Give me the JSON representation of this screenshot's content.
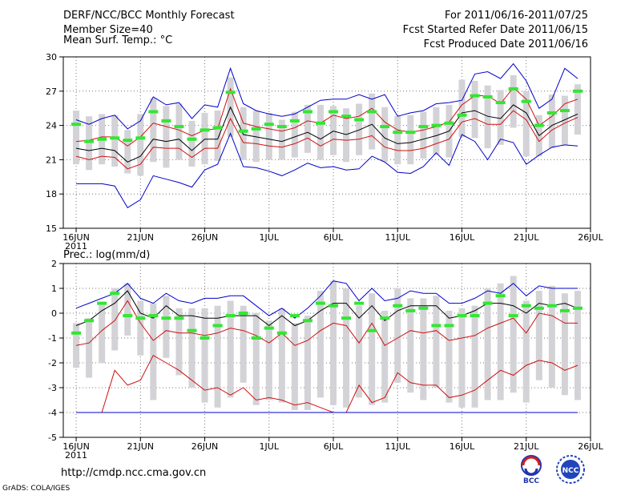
{
  "header": {
    "title": "DERF/NCC/BCC Monthly Forecast",
    "member_size": "Member Size=40",
    "period": "For 2011/06/16-2011/07/25",
    "fcst_started": "Fcst Started Refer Date 2011/06/15",
    "fcst_produced": "Fcst Produced Date 2011/06/16"
  },
  "footer": {
    "url": "http://cmdp.ncc.cma.gov.cn",
    "credit": "GrADS: COLA/IGES",
    "logo_bcc": "BCC",
    "logo_ncc": "NCC"
  },
  "colors": {
    "bar": "#d3d3d7",
    "green": "#33e633",
    "red": "#d01010",
    "blue": "#0000cc",
    "black": "#000000"
  },
  "chart_data": [
    {
      "type": "line",
      "title": "Mean Surf. Temp.: °C",
      "ylim": [
        15,
        30
      ],
      "yticks": [
        15,
        18,
        21,
        24,
        27,
        30
      ],
      "x_ticks": [
        {
          "day": 1,
          "label": "16JUN",
          "sub": "2011"
        },
        {
          "day": 6,
          "label": "21JUN"
        },
        {
          "day": 11,
          "label": "26JUN"
        },
        {
          "day": 16,
          "label": "1JUL"
        },
        {
          "day": 21,
          "label": "6JUL"
        },
        {
          "day": 26,
          "label": "11JUL"
        },
        {
          "day": 31,
          "label": "16JUL"
        },
        {
          "day": 36,
          "label": "21JUL"
        },
        {
          "day": 41,
          "label": "26JUL"
        }
      ],
      "x": [
        1,
        2,
        3,
        4,
        5,
        6,
        7,
        8,
        9,
        10,
        11,
        12,
        13,
        14,
        15,
        16,
        17,
        18,
        19,
        20,
        21,
        22,
        23,
        24,
        25,
        26,
        27,
        28,
        29,
        30,
        31,
        32,
        33,
        34,
        35,
        36,
        37,
        38,
        39,
        40
      ],
      "series": [
        {
          "name": "max",
          "color": "blue",
          "values": [
            24.5,
            24.1,
            24.6,
            24.9,
            23.7,
            24.4,
            26.5,
            25.8,
            26.0,
            24.6,
            25.8,
            25.6,
            29.0,
            25.9,
            25.3,
            25.0,
            24.8,
            25.0,
            25.6,
            26.2,
            26.3,
            26.3,
            26.7,
            26.3,
            26.7,
            24.8,
            25.1,
            25.3,
            25.9,
            26.0,
            26.2,
            28.5,
            28.7,
            28.1,
            29.4,
            27.9,
            25.5,
            26.3,
            29.0,
            28.1
          ]
        },
        {
          "name": "upper",
          "color": "red",
          "values": [
            22.6,
            22.7,
            23.0,
            23.0,
            22.2,
            23.0,
            24.2,
            23.9,
            23.6,
            23.1,
            23.6,
            23.7,
            27.2,
            24.2,
            23.9,
            23.7,
            23.5,
            23.8,
            24.4,
            24.2,
            24.9,
            24.6,
            24.8,
            25.5,
            24.3,
            23.6,
            23.4,
            23.6,
            23.9,
            24.3,
            25.8,
            26.6,
            26.6,
            25.9,
            27.3,
            26.3,
            24.0,
            24.8,
            25.9,
            26.3
          ]
        },
        {
          "name": "ens_mean",
          "color": "black",
          "values": [
            22.0,
            21.8,
            22.0,
            21.8,
            20.8,
            21.3,
            22.8,
            22.6,
            22.8,
            21.8,
            22.8,
            22.8,
            25.6,
            23.2,
            23.0,
            22.8,
            22.6,
            23.0,
            23.4,
            22.8,
            23.5,
            23.2,
            23.6,
            24.1,
            22.9,
            22.4,
            22.5,
            22.8,
            23.1,
            23.5,
            25.1,
            25.3,
            24.8,
            24.6,
            25.8,
            25.1,
            23.1,
            24.0,
            24.5,
            25.0
          ]
        },
        {
          "name": "lower",
          "color": "red",
          "values": [
            21.3,
            21.0,
            21.3,
            21.2,
            20.2,
            20.6,
            22.1,
            22.0,
            22.0,
            21.2,
            22.0,
            22.0,
            24.6,
            22.5,
            22.4,
            22.2,
            22.1,
            22.4,
            22.9,
            22.2,
            22.8,
            22.7,
            22.8,
            23.1,
            22.1,
            21.8,
            21.8,
            22.0,
            22.4,
            22.8,
            24.3,
            24.6,
            24.1,
            24.1,
            25.3,
            24.5,
            22.6,
            23.6,
            24.2,
            24.7
          ]
        },
        {
          "name": "min",
          "color": "blue",
          "values": [
            18.9,
            18.9,
            18.9,
            18.7,
            16.8,
            17.5,
            19.6,
            19.3,
            19.0,
            18.6,
            20.1,
            20.6,
            23.3,
            20.4,
            20.3,
            20.0,
            19.6,
            20.1,
            20.7,
            20.3,
            20.4,
            20.1,
            20.2,
            21.3,
            20.8,
            19.9,
            19.8,
            20.4,
            21.6,
            20.5,
            23.2,
            22.6,
            21.0,
            22.8,
            22.5,
            20.6,
            21.4,
            22.1,
            22.3,
            22.2
          ]
        },
        {
          "name": "obs",
          "color": "green",
          "values": [
            24.1,
            22.6,
            22.8,
            22.9,
            22.7,
            22.9,
            25.2,
            24.4,
            23.9,
            22.8,
            23.6,
            23.8,
            26.9,
            23.5,
            23.7,
            24.1,
            23.9,
            24.4,
            25.2,
            24.2,
            25.2,
            24.8,
            24.5,
            25.2,
            23.9,
            23.4,
            23.4,
            23.9,
            24.0,
            24.2,
            24.9,
            26.6,
            26.5,
            26.0,
            27.2,
            26.1,
            24.0,
            25.1,
            25.3,
            27.0
          ]
        }
      ],
      "bars": [
        [
          20.6,
          25.3
        ],
        [
          20.1,
          24.8
        ],
        [
          20.6,
          25.0
        ],
        [
          20.4,
          24.9
        ],
        [
          19.8,
          23.6
        ],
        [
          19.6,
          25.0
        ],
        [
          20.8,
          26.4
        ],
        [
          20.3,
          25.7
        ],
        [
          21.0,
          25.9
        ],
        [
          20.4,
          24.4
        ],
        [
          20.6,
          25.1
        ],
        [
          20.9,
          25.3
        ],
        [
          23.0,
          28.2
        ],
        [
          21.0,
          25.6
        ],
        [
          20.8,
          25.3
        ],
        [
          21.0,
          25.1
        ],
        [
          21.0,
          24.5
        ],
        [
          21.2,
          25.2
        ],
        [
          21.6,
          25.8
        ],
        [
          21.0,
          25.8
        ],
        [
          21.4,
          25.7
        ],
        [
          20.8,
          25.5
        ],
        [
          21.4,
          25.9
        ],
        [
          21.9,
          26.8
        ],
        [
          20.8,
          25.6
        ],
        [
          20.6,
          24.8
        ],
        [
          20.6,
          24.9
        ],
        [
          21.1,
          25.2
        ],
        [
          21.4,
          25.6
        ],
        [
          21.2,
          25.8
        ],
        [
          23.0,
          28.0
        ],
        [
          22.9,
          27.9
        ],
        [
          22.0,
          27.5
        ],
        [
          22.3,
          27.1
        ],
        [
          23.8,
          28.4
        ],
        [
          21.3,
          27.0
        ],
        [
          21.3,
          24.9
        ],
        [
          22.0,
          26.7
        ],
        [
          22.3,
          26.6
        ],
        [
          23.2,
          27.6
        ]
      ]
    },
    {
      "type": "line",
      "title": "Prec.: log(mm/d)",
      "ylim": [
        -5,
        2
      ],
      "yticks": [
        -5,
        -4,
        -3,
        -2,
        -1,
        0,
        1,
        2
      ],
      "x_ticks": [
        {
          "day": 1,
          "label": "16JUN",
          "sub": "2011"
        },
        {
          "day": 6,
          "label": "21JUN"
        },
        {
          "day": 11,
          "label": "26JUN"
        },
        {
          "day": 16,
          "label": "1JUL"
        },
        {
          "day": 21,
          "label": "6JUL"
        },
        {
          "day": 26,
          "label": "11JUL"
        },
        {
          "day": 31,
          "label": "16JUL"
        },
        {
          "day": 36,
          "label": "21JUL"
        },
        {
          "day": 41,
          "label": "26JUL"
        }
      ],
      "x": [
        1,
        2,
        3,
        4,
        5,
        6,
        7,
        8,
        9,
        10,
        11,
        12,
        13,
        14,
        15,
        16,
        17,
        18,
        19,
        20,
        21,
        22,
        23,
        24,
        25,
        26,
        27,
        28,
        29,
        30,
        31,
        32,
        33,
        34,
        35,
        36,
        37,
        38,
        39,
        40
      ],
      "series": [
        {
          "name": "max",
          "color": "blue",
          "values": [
            0.2,
            0.4,
            0.6,
            0.8,
            1.2,
            0.6,
            0.4,
            0.8,
            0.5,
            0.4,
            0.6,
            0.6,
            0.7,
            0.7,
            0.3,
            -0.1,
            0.2,
            -0.2,
            0.2,
            0.7,
            1.3,
            1.2,
            0.5,
            1.0,
            0.5,
            0.6,
            0.9,
            0.8,
            0.8,
            0.4,
            0.4,
            0.6,
            0.9,
            0.8,
            1.2,
            0.7,
            1.1,
            1.0,
            1.0,
            1.0
          ]
        },
        {
          "name": "ens_mean",
          "color": "black",
          "values": [
            -0.5,
            -0.3,
            0.1,
            0.4,
            0.9,
            0.0,
            -0.2,
            0.3,
            -0.1,
            -0.1,
            -0.2,
            -0.2,
            -0.1,
            -0.1,
            -0.1,
            -0.5,
            -0.1,
            -0.5,
            -0.3,
            0.1,
            0.4,
            0.4,
            -0.2,
            0.3,
            -0.3,
            0.1,
            0.3,
            0.3,
            0.3,
            -0.2,
            -0.1,
            0.1,
            0.4,
            0.4,
            0.3,
            0.0,
            0.4,
            0.3,
            0.4,
            0.2
          ]
        },
        {
          "name": "upper_red",
          "color": "red",
          "values": [
            -1.3,
            -1.2,
            -0.7,
            -0.3,
            0.5,
            -0.4,
            -1.1,
            -0.7,
            -0.8,
            -0.8,
            -0.9,
            -0.8,
            -0.6,
            -0.7,
            -0.9,
            -1.2,
            -0.8,
            -1.3,
            -1.1,
            -0.7,
            -0.4,
            -0.5,
            -1.2,
            -0.4,
            -1.3,
            -1.0,
            -0.7,
            -0.8,
            -0.7,
            -1.1,
            -1.0,
            -0.9,
            -0.6,
            -0.4,
            -0.2,
            -0.8,
            0.0,
            -0.1,
            -0.4,
            -0.4
          ]
        },
        {
          "name": "lower_red",
          "color": "red",
          "values": [
            -4.0,
            -4.0,
            -4.0,
            -2.3,
            -2.9,
            -2.7,
            -1.7,
            -2.0,
            -2.3,
            -2.7,
            -3.1,
            -3.0,
            -3.3,
            -3.0,
            -3.5,
            -3.4,
            -3.5,
            -3.7,
            -3.6,
            -3.8,
            -4.0,
            -4.0,
            -2.9,
            -3.6,
            -3.4,
            -2.4,
            -2.8,
            -2.9,
            -2.9,
            -3.4,
            -3.3,
            -3.1,
            -2.7,
            -2.3,
            -2.5,
            -2.1,
            -1.9,
            -2.0,
            -2.3,
            -2.1
          ]
        },
        {
          "name": "min",
          "color": "blue",
          "values": [
            -4.0,
            -4.0,
            -4.0,
            -4.0,
            -4.0,
            -4.0,
            -4.0,
            -4.0,
            -4.0,
            -4.0,
            -4.0,
            -4.0,
            -4.0,
            -4.0,
            -4.0,
            -4.0,
            -4.0,
            -4.0,
            -4.0,
            -4.0,
            -4.0,
            -4.0,
            -4.0,
            -4.0,
            -4.0,
            -4.0,
            -4.0,
            -4.0,
            -4.0,
            -4.0,
            -4.0,
            -4.0,
            -4.0,
            -4.0,
            -4.0,
            -4.0,
            -4.0,
            -4.0,
            -4.0,
            -4.0
          ]
        },
        {
          "name": "obs",
          "color": "green",
          "values": [
            -0.8,
            -0.3,
            0.4,
            0.8,
            -0.1,
            -0.2,
            -0.1,
            -0.2,
            -0.2,
            -0.7,
            -1.0,
            -0.5,
            -0.1,
            0.0,
            -1.0,
            -0.6,
            -0.8,
            -0.1,
            -0.3,
            0.4,
            0.3,
            -0.2,
            0.4,
            -0.7,
            -0.2,
            0.3,
            0.1,
            0.2,
            -0.5,
            -0.5,
            -0.1,
            -0.1,
            0.4,
            0.7,
            -0.1,
            0.3,
            0.2,
            0.3,
            0.1,
            0.2
          ]
        }
      ],
      "bars": [
        [
          -2.2,
          -0.4
        ],
        [
          -2.6,
          -0.2
        ],
        [
          -2.0,
          0.4
        ],
        [
          -1.5,
          1.0
        ],
        [
          -0.9,
          1.2
        ],
        [
          -1.7,
          0.5
        ],
        [
          -3.5,
          0.4
        ],
        [
          -1.8,
          0.7
        ],
        [
          -2.5,
          0.2
        ],
        [
          -3.0,
          0.2
        ],
        [
          -3.6,
          0.2
        ],
        [
          -3.8,
          0.3
        ],
        [
          -3.4,
          0.5
        ],
        [
          -2.8,
          0.3
        ],
        [
          -3.7,
          0.0
        ],
        [
          -3.5,
          -0.3
        ],
        [
          -3.6,
          0.2
        ],
        [
          -3.9,
          -0.4
        ],
        [
          -3.9,
          -0.1
        ],
        [
          -3.4,
          0.9
        ],
        [
          -3.7,
          1.3
        ],
        [
          -3.8,
          1.0
        ],
        [
          -3.4,
          0.3
        ],
        [
          -3.7,
          0.8
        ],
        [
          -3.6,
          0.1
        ],
        [
          -2.8,
          1.0
        ],
        [
          -3.2,
          0.6
        ],
        [
          -3.5,
          0.6
        ],
        [
          -3.0,
          0.7
        ],
        [
          -3.6,
          0.1
        ],
        [
          -3.8,
          0.2
        ],
        [
          -3.8,
          0.3
        ],
        [
          -3.5,
          1.0
        ],
        [
          -3.5,
          1.2
        ],
        [
          -3.2,
          1.5
        ],
        [
          -3.6,
          0.5
        ],
        [
          -2.7,
          0.9
        ],
        [
          -3.0,
          1.1
        ],
        [
          -3.3,
          0.8
        ],
        [
          -3.5,
          0.9
        ]
      ]
    }
  ]
}
